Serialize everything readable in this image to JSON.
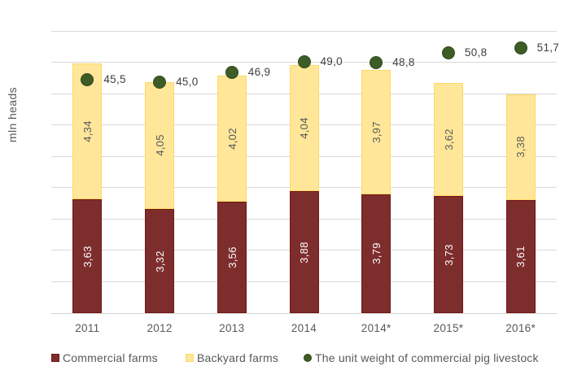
{
  "chart_data": {
    "type": "bar",
    "stacked": true,
    "title": "",
    "xlabel": "",
    "ylabel": "mln heads",
    "categories": [
      "2011",
      "2012",
      "2013",
      "2014",
      "2014*",
      "2015*",
      "2016*"
    ],
    "series": [
      {
        "name": "Commercial farms",
        "type": "bar",
        "axis": "primary",
        "color": "#7E2D2D",
        "border_color": "#721517",
        "label_color": "#FFFFFF",
        "values": [
          3.63,
          3.32,
          3.56,
          3.88,
          3.79,
          3.73,
          3.61
        ],
        "labels": [
          "3,63",
          "3,32",
          "3,56",
          "3,88",
          "3,79",
          "3,73",
          "3,61"
        ]
      },
      {
        "name": "Backyard farms",
        "type": "bar",
        "axis": "primary",
        "color": "#FFE699",
        "border_color": "#FFD965",
        "label_color": "#595959",
        "values": [
          4.34,
          4.05,
          4.02,
          4.04,
          3.97,
          3.62,
          3.38
        ],
        "labels": [
          "4,34",
          "4,05",
          "4,02",
          "4,04",
          "3,97",
          "3,62",
          "3,38"
        ]
      },
      {
        "name": "The unit weight of commercial pig livestock",
        "type": "scatter",
        "axis": "secondary",
        "color": "#3E5C26",
        "border_color": "#2F4A1B",
        "label_color": "#3F3F3F",
        "values": [
          45.5,
          45.0,
          46.9,
          49.0,
          48.8,
          50.8,
          51.7
        ],
        "labels": [
          "45,5",
          "45,0",
          "46,9",
          "49,0",
          "48,8",
          "50,8",
          "51,7"
        ]
      }
    ],
    "primary_axis": {
      "min": 0,
      "max": 9,
      "gridline_step": 1
    },
    "secondary_axis": {
      "min": 0,
      "max": 55
    },
    "grid": true,
    "gridline_color": "#D9D9D9",
    "axis_line_color": "#D6D6D6",
    "text_color": "#595959",
    "legend_position": "bottom"
  }
}
